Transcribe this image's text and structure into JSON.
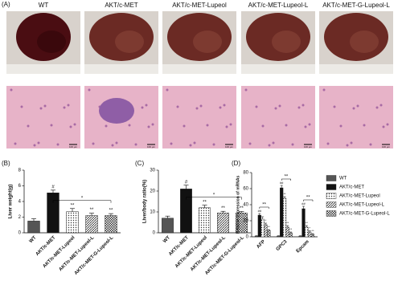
{
  "panel_a": {
    "label": "(A)",
    "columns": [
      "WT",
      "AKT/c-MET",
      "AKT/c-MET-Lupeol",
      "AKT/c-MET-Lupeol-L",
      "AKT/c-MET-G-Lupeol-L"
    ],
    "scale_label": "100 μm"
  },
  "chart_data": [
    {
      "type": "bar",
      "panel_label": "(B)",
      "y_label": "Liver weight(g)",
      "categories": [
        "WT",
        "AKT/c-MET",
        "AKT/c-MET-Lupeol",
        "AKT/c-MET-Lupeol-L",
        "AKT/c-MET-G-Lupeol-L"
      ],
      "values": [
        1.5,
        5.1,
        2.7,
        2.2,
        2.2
      ],
      "errors": [
        0.3,
        0.35,
        0.4,
        0.3,
        0.25
      ],
      "colors": [
        "#555555",
        "#111111",
        "#333333",
        "#333333",
        "#333333"
      ],
      "markers": [
        null,
        "#",
        "**",
        "**",
        "**"
      ],
      "bracket_label": "*",
      "ylim": [
        0,
        8
      ],
      "yticks": [
        0,
        2,
        4,
        6,
        8
      ]
    },
    {
      "type": "bar",
      "panel_label": "(C)",
      "y_label": "Liver/body ratio(%)",
      "categories": [
        "WT",
        "AKT/c-MET",
        "AKT/c-MET-Lupeol",
        "AKT/c-MET-Lupeol-L",
        "AKT/c-MET-G-Lupeol-L"
      ],
      "values": [
        7,
        21,
        12,
        9.5,
        9.5
      ],
      "errors": [
        1,
        1.8,
        1.2,
        0.8,
        0.7
      ],
      "colors": [
        "#555555",
        "#111111",
        "#333333",
        "#333333",
        "#333333"
      ],
      "markers": [
        null,
        "#",
        "**",
        "**",
        "**"
      ],
      "bracket_label": "*",
      "ylim": [
        0,
        30
      ],
      "yticks": [
        0,
        10,
        20,
        30
      ]
    },
    {
      "type": "grouped_bar",
      "panel_label": "(D)",
      "y_label": "Relative expression of mRNAs",
      "categories": [
        "AFP",
        "GPC3",
        "Epcam"
      ],
      "series": [
        {
          "name": "WT",
          "color": "#555555",
          "values": [
            1,
            1,
            1
          ],
          "errors": [
            0.3,
            0.3,
            0.3
          ],
          "markers": [
            null,
            null,
            null
          ]
        },
        {
          "name": "AKT/c-MET",
          "color": "#111111",
          "values": [
            27,
            61,
            35
          ],
          "errors": [
            2,
            3,
            3
          ],
          "markers": [
            "##",
            "##",
            "##"
          ]
        },
        {
          "name": "AKT/c-MET-Lupeol",
          "color": "#333333",
          "values": [
            22,
            48,
            12
          ],
          "errors": [
            3,
            2,
            2
          ],
          "markers": [
            null,
            "**",
            "**"
          ]
        },
        {
          "name": "AKT/c-MET-Lupeol-L",
          "color": "#333333",
          "values": [
            15,
            12,
            6
          ],
          "errors": [
            2,
            2,
            1.5
          ],
          "markers": [
            "*",
            "**",
            "*"
          ]
        },
        {
          "name": "AKT/c-MET-G-Lupeol-L",
          "color": "#333333",
          "values": [
            8,
            5,
            3
          ],
          "errors": [
            1,
            1,
            1
          ],
          "markers": [
            "**",
            "**",
            "**"
          ]
        }
      ],
      "bracket_labels": [
        "**",
        "**",
        "**"
      ],
      "ylim": [
        0,
        80
      ],
      "yticks": [
        0,
        20,
        40,
        60,
        80
      ]
    }
  ]
}
